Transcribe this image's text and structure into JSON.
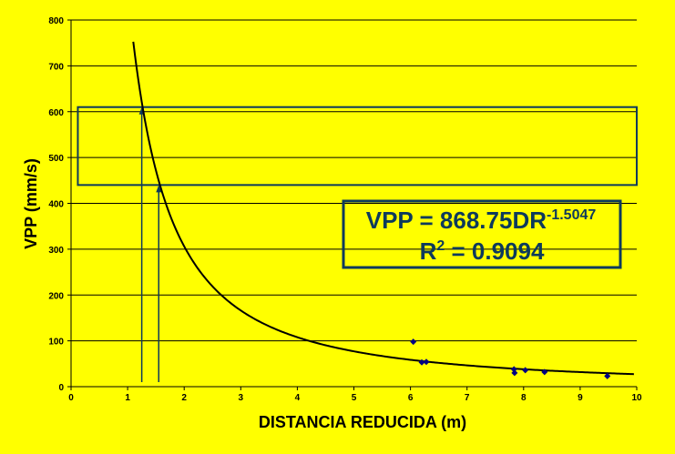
{
  "chart_data": {
    "type": "scatter",
    "xlabel": "DISTANCIA REDUCIDA (m)",
    "ylabel": "VPP (mm/s)",
    "xlim": [
      0,
      10
    ],
    "ylim": [
      0,
      800
    ],
    "xticks": [
      "0",
      "1",
      "2",
      "3",
      "4",
      "5",
      "6",
      "7",
      "8",
      "9",
      "10"
    ],
    "yticks": [
      "0",
      "100",
      "200",
      "300",
      "400",
      "500",
      "600",
      "700",
      "800"
    ],
    "grid": "horizontal",
    "series": [
      {
        "type": "scatter",
        "points": [
          {
            "x": 6.05,
            "y": 98
          },
          {
            "x": 6.2,
            "y": 53
          },
          {
            "x": 6.28,
            "y": 54
          },
          {
            "x": 7.83,
            "y": 38
          },
          {
            "x": 7.84,
            "y": 30
          },
          {
            "x": 8.03,
            "y": 36
          },
          {
            "x": 8.37,
            "y": 32
          },
          {
            "x": 9.48,
            "y": 23
          }
        ],
        "color": "#000080"
      },
      {
        "type": "line",
        "fit": "power",
        "coefficient": 868.75,
        "exponent": -1.5047,
        "x_range": [
          1.1,
          9.95
        ],
        "color": "#000000"
      }
    ],
    "band": {
      "y_low": 440,
      "y_high": 610,
      "x_low": 0.12,
      "x_high": 10.0
    },
    "arrows": [
      {
        "x": 1.25,
        "y_from": 10,
        "y_to": 610
      },
      {
        "x": 1.55,
        "y_from": 10,
        "y_to": 440
      }
    ],
    "equation": {
      "line1_main": "VPP = 868.75DR",
      "line1_exp": "-1.5047",
      "line2_main": "R",
      "line2_exp": "2",
      "line2_rest": " = 0.9094"
    },
    "colors": {
      "background": "#FFFF00",
      "box_stroke": "#0D3A5C",
      "marker": "#000080",
      "curve": "#000000"
    }
  }
}
